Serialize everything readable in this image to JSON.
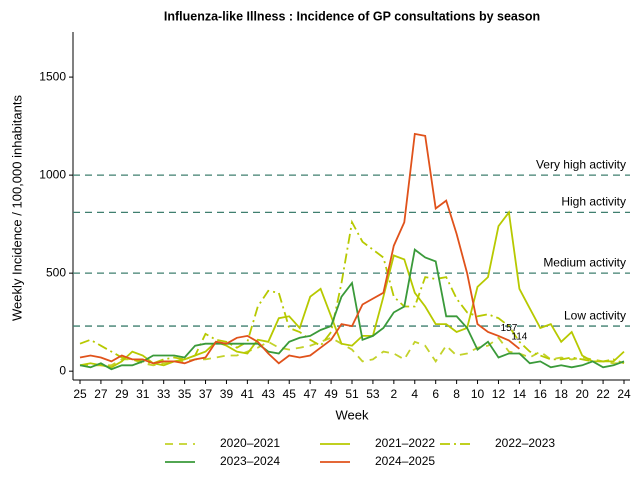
{
  "chart_data": {
    "type": "line",
    "title": "Influenza-like Illness : Incidence of GP consultations by season",
    "x_label": "Week",
    "y_label": "Weekly Incidence / 100,000 inhabitants",
    "categories": [
      "25",
      null,
      "27",
      null,
      "29",
      null,
      "31",
      null,
      "33",
      null,
      "35",
      null,
      "37",
      null,
      "39",
      null,
      "41",
      null,
      "43",
      null,
      "45",
      null,
      "47",
      null,
      "49",
      null,
      "51",
      null,
      "53",
      null,
      "2",
      null,
      "4",
      null,
      "6",
      null,
      "8",
      null,
      "10",
      null,
      "12",
      null,
      "14",
      null,
      "16",
      null,
      "18",
      null,
      "20",
      null,
      "22",
      null,
      "24"
    ],
    "ylim": [
      -45,
      1730
    ],
    "yticks": [
      0,
      500,
      1000,
      1500
    ],
    "thresholds": [
      {
        "value": 1000,
        "label": "Very high activity"
      },
      {
        "value": 810,
        "label": "High activity"
      },
      {
        "value": 500,
        "label": "Medium activity"
      },
      {
        "value": 230,
        "label": "Low activity"
      }
    ],
    "threshold_color": "#3f7f6f",
    "legend": "bottom",
    "series": [
      {
        "name": "2020–2021",
        "color": "#c3d22a",
        "dash": "dashed",
        "values": [
          30,
          30,
          30,
          30,
          60,
          60,
          40,
          30,
          40,
          50,
          50,
          60,
          60,
          70,
          80,
          80,
          100,
          120,
          150,
          120,
          110,
          120,
          130,
          150,
          170,
          140,
          110,
          50,
          60,
          100,
          90,
          60,
          150,
          130,
          50,
          130,
          80,
          90,
          120,
          130,
          170,
          100,
          90,
          70,
          100,
          60,
          70,
          60,
          70,
          60,
          50,
          40,
          40
        ]
      },
      {
        "name": "2021–2022",
        "color": "#b7c900",
        "dash": "solid",
        "values": [
          30,
          40,
          30,
          20,
          50,
          100,
          80,
          40,
          30,
          50,
          60,
          80,
          100,
          150,
          130,
          100,
          90,
          160,
          150,
          270,
          280,
          220,
          380,
          420,
          280,
          140,
          130,
          180,
          180,
          380,
          590,
          570,
          400,
          330,
          240,
          240,
          200,
          220,
          430,
          480,
          740,
          810,
          420,
          320,
          220,
          240,
          150,
          200,
          80,
          50,
          50,
          50,
          100
        ]
      },
      {
        "name": "2022–2023",
        "color": "#b7c900",
        "dash": "dashdot",
        "values": [
          140,
          160,
          130,
          100,
          70,
          60,
          50,
          40,
          60,
          70,
          60,
          80,
          190,
          160,
          150,
          120,
          150,
          330,
          410,
          400,
          220,
          200,
          160,
          130,
          200,
          450,
          760,
          660,
          620,
          580,
          380,
          330,
          330,
          480,
          470,
          480,
          370,
          300,
          280,
          290,
          270,
          230,
          150,
          100,
          80,
          60,
          60,
          70,
          60,
          50,
          50,
          60,
          40
        ]
      },
      {
        "name": "2023–2024",
        "color": "#3a9a3a",
        "dash": "solid",
        "values": [
          30,
          20,
          40,
          10,
          30,
          30,
          50,
          80,
          80,
          80,
          70,
          130,
          140,
          140,
          140,
          140,
          140,
          140,
          100,
          90,
          150,
          170,
          180,
          210,
          230,
          380,
          450,
          160,
          180,
          220,
          300,
          330,
          620,
          580,
          560,
          280,
          280,
          220,
          110,
          150,
          70,
          90,
          90,
          40,
          50,
          20,
          30,
          20,
          30,
          50,
          20,
          30,
          50
        ]
      },
      {
        "name": "2024–2025",
        "color": "#e0521b",
        "dash": "solid",
        "values": [
          70,
          80,
          70,
          50,
          80,
          60,
          60,
          40,
          50,
          50,
          40,
          60,
          70,
          150,
          140,
          170,
          180,
          150,
          90,
          40,
          80,
          70,
          80,
          120,
          160,
          240,
          230,
          340,
          370,
          400,
          640,
          760,
          1210,
          1200,
          830,
          870,
          700,
          500,
          240,
          200,
          180,
          157,
          114,
          null,
          null,
          null,
          null,
          null,
          null,
          null,
          null,
          null,
          null
        ],
        "value_labels": [
          null,
          null,
          null,
          null,
          null,
          null,
          null,
          null,
          null,
          null,
          null,
          null,
          null,
          null,
          null,
          null,
          null,
          null,
          null,
          null,
          null,
          null,
          null,
          null,
          null,
          null,
          null,
          null,
          null,
          null,
          null,
          null,
          null,
          null,
          null,
          null,
          null,
          null,
          null,
          null,
          null,
          "157",
          "114",
          null,
          null,
          null,
          null,
          null,
          null,
          null,
          null,
          null,
          null
        ]
      }
    ]
  }
}
